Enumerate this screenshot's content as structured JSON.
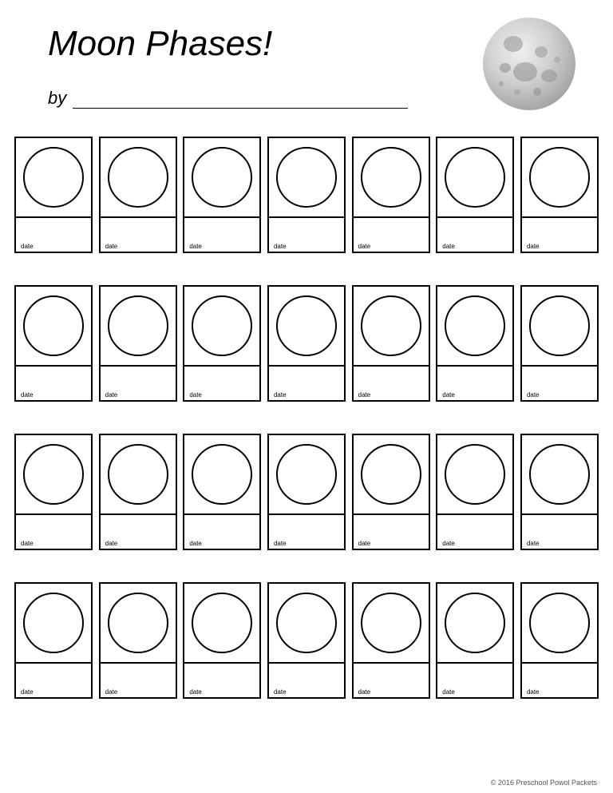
{
  "title": "Moon Phases!",
  "by_label": "by",
  "cell_label": "date",
  "rows": 4,
  "cols": 7,
  "copyright": "© 2016 Preschool Powol Packets",
  "moon": {
    "base_color": "#d0d0d0",
    "highlight": "#e8e8e8",
    "shadow": "#a0a0a0",
    "crater_color": "#909090"
  }
}
